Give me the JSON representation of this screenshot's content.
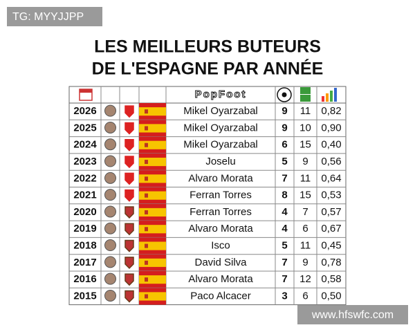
{
  "watermark_top": "TG: MYYJJPP",
  "watermark_bottom": "www.hfswfc.com",
  "header": {
    "title_lines": [
      "LES MEILLEURS BUTEURS",
      "DE L'ESPAGNE PAR ANNÉE"
    ],
    "logo": "PopFoot"
  },
  "table": {
    "rows": [
      {
        "year": 2026,
        "player": "Mikel Oyarzabal",
        "goals": 9,
        "matches": 11,
        "ratio": "0,82"
      },
      {
        "year": 2025,
        "player": "Mikel Oyarzabal",
        "goals": 9,
        "matches": 10,
        "ratio": "0,90"
      },
      {
        "year": 2024,
        "player": "Mikel Oyarzabal",
        "goals": 6,
        "matches": 15,
        "ratio": "0,40"
      },
      {
        "year": 2023,
        "player": "Joselu",
        "goals": 5,
        "matches": 9,
        "ratio": "0,56"
      },
      {
        "year": 2022,
        "player": "Alvaro Morata",
        "goals": 7,
        "matches": 11,
        "ratio": "0,64"
      },
      {
        "year": 2021,
        "player": "Ferran Torres",
        "goals": 8,
        "matches": 15,
        "ratio": "0,53"
      },
      {
        "year": 2020,
        "player": "Ferran Torres",
        "goals": 4,
        "matches": 7,
        "ratio": "0,57"
      },
      {
        "year": 2019,
        "player": "Alvaro Morata",
        "goals": 4,
        "matches": 6,
        "ratio": "0,67"
      },
      {
        "year": 2018,
        "player": "Isco",
        "goals": 5,
        "matches": 11,
        "ratio": "0,45"
      },
      {
        "year": 2017,
        "player": "David Silva",
        "goals": 7,
        "matches": 9,
        "ratio": "0,78"
      },
      {
        "year": 2016,
        "player": "Alvaro Morata",
        "goals": 7,
        "matches": 12,
        "ratio": "0,58"
      },
      {
        "year": 2015,
        "player": "Paco Alcacer",
        "goals": 3,
        "matches": 6,
        "ratio": "0,50"
      }
    ]
  }
}
